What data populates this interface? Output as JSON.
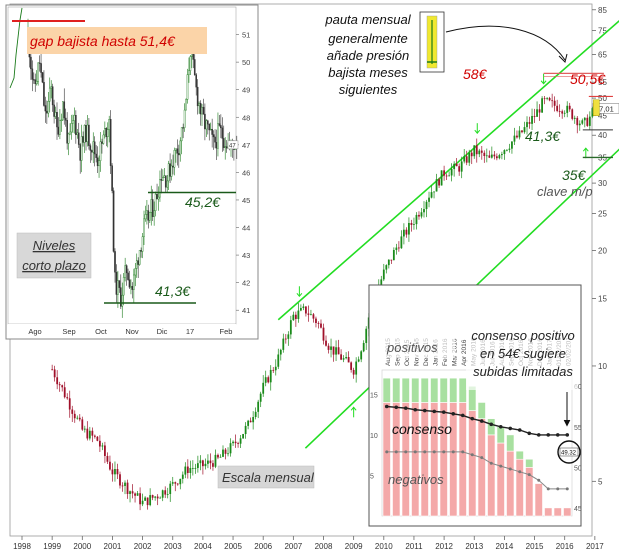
{
  "chart_data": [
    {
      "type": "candlestick",
      "scale": "log",
      "xlabel": "",
      "ylabel": "",
      "x_ticks": [
        "1998",
        "1999",
        "2000",
        "2001",
        "2002",
        "2003",
        "2004",
        "2005",
        "2006",
        "2007",
        "2008",
        "2009",
        "2010",
        "2011",
        "2012",
        "2013",
        "2014",
        "2015",
        "2016",
        "2017"
      ],
      "y_ticks": [
        5,
        10,
        15,
        20,
        25,
        30,
        35,
        40,
        45,
        50,
        55,
        65,
        75,
        85
      ],
      "ylim": [
        3.6,
        88
      ],
      "series": [
        {
          "name": "",
          "x": [
            1999.0,
            1999.5,
            2000.0,
            2000.5,
            2001.0,
            2001.5,
            2002.0,
            2002.5,
            2003.0,
            2003.5,
            2004.0,
            2004.5,
            2005.0,
            2005.5,
            2006.0,
            2006.5,
            2007.0,
            2007.4,
            2007.8,
            2008.2,
            2008.6,
            2009.0,
            2009.3,
            2009.6,
            2010.0,
            2010.5,
            2011.0,
            2011.5,
            2012.0,
            2012.5,
            2013.0,
            2013.5,
            2014.0,
            2014.5,
            2015.0,
            2015.3,
            2015.6,
            2016.0,
            2016.3,
            2016.6,
            2016.8,
            2017.0
          ],
          "values": [
            9.8,
            8.2,
            6.8,
            6.4,
            5.3,
            4.8,
            4.4,
            4.6,
            4.9,
            5.4,
            5.5,
            5.7,
            6.2,
            7.0,
            8.8,
            10.5,
            13.5,
            14.0,
            13.0,
            11.2,
            10.5,
            9.8,
            11.5,
            14.5,
            17.5,
            21.0,
            24.0,
            28.0,
            32.0,
            33.0,
            36.5,
            34.5,
            37.0,
            40.0,
            45.0,
            49.0,
            48.0,
            47.0,
            45.0,
            42.5,
            44.0,
            47.0
          ]
        }
      ],
      "price_labels": {
        "current": "47,01",
        "top_tick": "85"
      },
      "annotations": {
        "pauta": "pauta mensual generalmente añade presión bajista meses siguientes",
        "level_58": "58€",
        "level_505": "50,5€",
        "level_413": "41,3€",
        "level_35": "35€",
        "clave": "clave m/p",
        "escala": "Escala mensual"
      },
      "trend_color": "#22dd22",
      "up_color": "#1a8a1a",
      "down_color": "#a0102a"
    },
    {
      "type": "candlestick",
      "scale": "linear",
      "x_ticks": [
        "Ago",
        "Sep",
        "Oct",
        "Nov",
        "Dic",
        "17",
        "Feb"
      ],
      "y_ticks": [
        41,
        42,
        43,
        44,
        45,
        46,
        47,
        48,
        49,
        50,
        51
      ],
      "ylim": [
        40.5,
        52
      ],
      "series": [
        {
          "name": "",
          "x": [
            0,
            4,
            8,
            12,
            16,
            20,
            24,
            28,
            32,
            36,
            40,
            44,
            48,
            52,
            56,
            60,
            64,
            68,
            72,
            76,
            80,
            84,
            88,
            92,
            96,
            100,
            104,
            108,
            112,
            116,
            120,
            124,
            128,
            132,
            136,
            140,
            144
          ],
          "values": [
            51.0,
            49.0,
            50.0,
            48.0,
            49.0,
            47.5,
            48.5,
            47.0,
            48.0,
            46.8,
            47.5,
            47.0,
            46.5,
            47.2,
            48.0,
            42.0,
            41.5,
            42.5,
            41.8,
            43.0,
            44.0,
            44.5,
            45.0,
            46.0,
            45.8,
            46.5,
            47.0,
            48.0,
            50.5,
            49.0,
            48.0,
            47.5,
            47.0,
            47.5,
            47.2,
            46.9,
            47.2
          ]
        }
      ],
      "price_labels": {
        "current": "47"
      },
      "annotations": {
        "gap": "gap bajista hasta 51,4€",
        "level_452": "45,2€",
        "level_413": "41,3€",
        "niveles": "Niveles corto plazo"
      }
    },
    {
      "type": "bar",
      "stacked": true,
      "categories": [
        "Aug 2015",
        "Sep 2015",
        "Oct 2015",
        "Nov 2015",
        "Dec 2015",
        "Jan 2016",
        "Feb 2016",
        "Mar 2016",
        "Apr 2016",
        "May 2016",
        "Jun 2016",
        "Jul 2016",
        "Aug 2016",
        "Sep 2016",
        "Oct 2016",
        "Nov 2016",
        "Dec 2016",
        "Jan 2017",
        "01/02/2017",
        "02/02/2017"
      ],
      "series": [
        {
          "name": "positivos",
          "values": [
            3,
            3,
            3,
            3,
            3,
            3,
            3,
            3,
            3,
            3,
            2,
            2,
            2,
            2,
            1,
            1,
            0,
            0,
            0,
            0
          ]
        },
        {
          "name": "negativos",
          "values": [
            14,
            14,
            14,
            14,
            14,
            14,
            14,
            14,
            14,
            13,
            12,
            10,
            9,
            8,
            7,
            6,
            4,
            1,
            1,
            1
          ]
        },
        {
          "name": "consenso",
          "values": [
            57.5,
            57.4,
            57.3,
            57.1,
            57.0,
            56.9,
            56.8,
            56.6,
            56.4,
            56.0,
            55.7,
            55.3,
            55.0,
            54.8,
            54.6,
            54.2,
            54.0,
            54.0,
            54.0,
            54.0
          ]
        }
      ],
      "right_ticks": [
        "60",
        "55",
        "50",
        "45"
      ],
      "left_ticks": [
        "15",
        "10",
        "5"
      ],
      "callout": "49.32",
      "annotations": {
        "title": "consenso positivo en 54€ sugiere subidas limitadas",
        "positivos": "positivos",
        "consenso": "consenso",
        "negativos": "negativos"
      }
    }
  ]
}
